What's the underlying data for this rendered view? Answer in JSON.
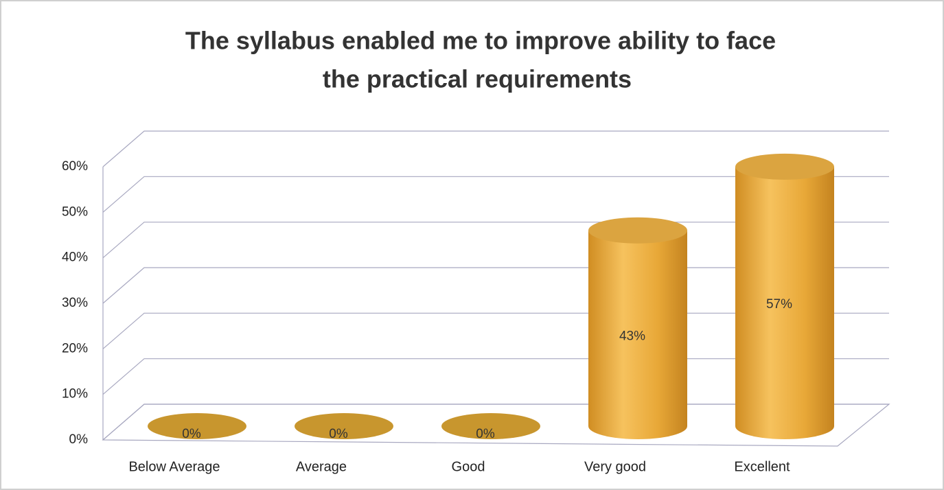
{
  "chart_data": {
    "type": "bar3d",
    "title": [
      "The syllabus enabled me to improve  ability to face",
      "the practical requirements"
    ],
    "categories": [
      "Below Average",
      "Average",
      "Good",
      "Very good",
      "Excellent"
    ],
    "values": [
      0,
      0,
      0,
      43,
      57
    ],
    "value_labels": [
      "0%",
      "0%",
      "0%",
      "43%",
      "57%"
    ],
    "color": "#e8a838",
    "ylim": [
      0,
      60
    ],
    "yticks": [
      {
        "value": 0,
        "label": "0%"
      },
      {
        "value": 10,
        "label": "10%"
      },
      {
        "value": 20,
        "label": "20%"
      },
      {
        "value": 30,
        "label": "30%"
      },
      {
        "value": 40,
        "label": "40%"
      },
      {
        "value": 50,
        "label": "50%"
      },
      {
        "value": 60,
        "label": "60%"
      }
    ],
    "grid": true
  }
}
